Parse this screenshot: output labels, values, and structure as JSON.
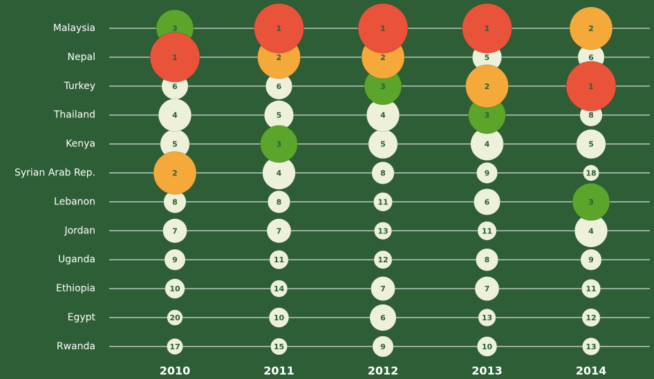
{
  "chart_data": {
    "type": "bubble",
    "categories": [
      "Malaysia",
      "Nepal",
      "Turkey",
      "Thailand",
      "Kenya",
      "Syrian Arab Rep.",
      "Lebanon",
      "Jordan",
      "Uganda",
      "Ethiopia",
      "Egypt",
      "Rwanda"
    ],
    "series": [
      {
        "name": "2010",
        "values": [
          3,
          1,
          6,
          4,
          5,
          2,
          8,
          7,
          9,
          10,
          20,
          17
        ]
      },
      {
        "name": "2011",
        "values": [
          1,
          2,
          6,
          5,
          3,
          4,
          8,
          7,
          11,
          14,
          10,
          15
        ]
      },
      {
        "name": "2012",
        "values": [
          1,
          2,
          3,
          4,
          5,
          8,
          11,
          13,
          12,
          7,
          6,
          9
        ]
      },
      {
        "name": "2013",
        "values": [
          1,
          5,
          2,
          3,
          4,
          9,
          6,
          11,
          8,
          7,
          13,
          10
        ]
      },
      {
        "name": "2014",
        "values": [
          2,
          6,
          1,
          8,
          5,
          18,
          3,
          4,
          9,
          11,
          12,
          13
        ]
      }
    ],
    "rank_colors": [
      "#e8533a",
      "#f5a93a",
      "#5aa52a"
    ],
    "default_color": "#eef1d9",
    "background": "#2d5e36"
  }
}
